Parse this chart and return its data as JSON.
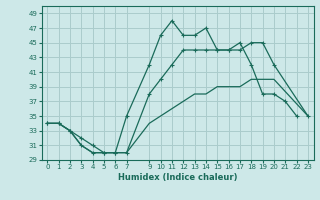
{
  "xlabel": "Humidex (Indice chaleur)",
  "bg_color": "#cde8e8",
  "grid_color": "#aacccc",
  "line_color": "#1a6b5a",
  "xlim": [
    -0.5,
    23.5
  ],
  "ylim": [
    29,
    50
  ],
  "xticks": [
    0,
    1,
    2,
    3,
    4,
    5,
    6,
    7,
    9,
    10,
    11,
    12,
    13,
    14,
    15,
    16,
    17,
    18,
    19,
    20,
    21,
    22,
    23
  ],
  "yticks": [
    29,
    31,
    33,
    35,
    37,
    39,
    41,
    43,
    45,
    47,
    49
  ],
  "series1_x": [
    0,
    1,
    2,
    3,
    4,
    5,
    6,
    7,
    9,
    10,
    11,
    12,
    13,
    14,
    15,
    16,
    17,
    18,
    19,
    20,
    21,
    22
  ],
  "series1_y": [
    34,
    34,
    33,
    32,
    31,
    30,
    30,
    35,
    42,
    46,
    48,
    46,
    46,
    47,
    44,
    44,
    45,
    42,
    38,
    38,
    37,
    35
  ],
  "series2_x": [
    0,
    1,
    2,
    3,
    4,
    5,
    6,
    7,
    9,
    10,
    11,
    12,
    13,
    14,
    15,
    16,
    17,
    18,
    19,
    20,
    23
  ],
  "series2_y": [
    34,
    34,
    33,
    31,
    30,
    30,
    30,
    30,
    38,
    40,
    42,
    44,
    44,
    44,
    44,
    44,
    44,
    45,
    45,
    42,
    35
  ],
  "series2b_x": [
    22
  ],
  "series2b_y": [
    38
  ],
  "series3_x": [
    0,
    1,
    2,
    3,
    4,
    5,
    6,
    7,
    9,
    10,
    11,
    12,
    13,
    14,
    15,
    16,
    17,
    18,
    19,
    20,
    23
  ],
  "series3_y": [
    34,
    34,
    33,
    31,
    30,
    30,
    30,
    30,
    34,
    35,
    36,
    37,
    38,
    38,
    39,
    39,
    39,
    40,
    40,
    40,
    35
  ]
}
